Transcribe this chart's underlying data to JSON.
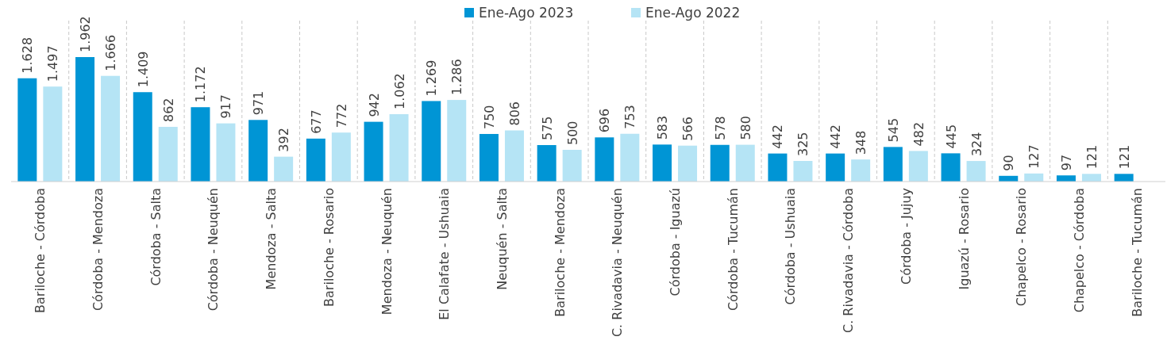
{
  "chart_data": {
    "type": "bar",
    "categories": [
      "Bariloche - Córdoba",
      "Córdoba - Mendoza",
      "Córdoba - Salta",
      "Córdoba - Neuquén",
      "Mendoza - Salta",
      "Bariloche - Rosario",
      "Mendoza - Neuquén",
      "El Calafate - Ushuaia",
      "Neuquén - Salta",
      "Bariloche - Mendoza",
      "C. Rivadavia - Neuquén",
      "Córdoba - Iguazú",
      "Córdoba - Tucumán",
      "Córdoba - Ushuaia",
      "C. Rivadavia - Córdoba",
      "Córdoba - Jujuy",
      "Iguazú - Rosario",
      "Chapelco - Rosario",
      "Chapelco - Córdoba",
      "Bariloche - Tucumán"
    ],
    "series": [
      {
        "name": "Ene-Ago 2023",
        "color": "#0095d5",
        "values": [
          1628,
          1962,
          1409,
          1172,
          971,
          677,
          942,
          1269,
          750,
          575,
          696,
          583,
          578,
          442,
          442,
          545,
          445,
          90,
          97,
          121
        ],
        "value_labels": [
          "1.628",
          "1.962",
          "1.409",
          "1.172",
          "971",
          "677",
          "942",
          "1.269",
          "750",
          "575",
          "696",
          "583",
          "578",
          "442",
          "442",
          "545",
          "445",
          "90",
          "97",
          "121"
        ]
      },
      {
        "name": "Ene-Ago 2022",
        "color": "#b5e4f5",
        "values": [
          1497,
          1666,
          862,
          917,
          392,
          772,
          1062,
          1286,
          806,
          500,
          753,
          566,
          580,
          325,
          348,
          482,
          324,
          127,
          121,
          null
        ],
        "value_labels": [
          "1.497",
          "1.666",
          "862",
          "917",
          "392",
          "772",
          "1.062",
          "1.286",
          "806",
          "500",
          "753",
          "566",
          "580",
          "325",
          "348",
          "482",
          "324",
          "127",
          "121",
          null
        ]
      }
    ],
    "grid": "x",
    "legend": "top"
  }
}
